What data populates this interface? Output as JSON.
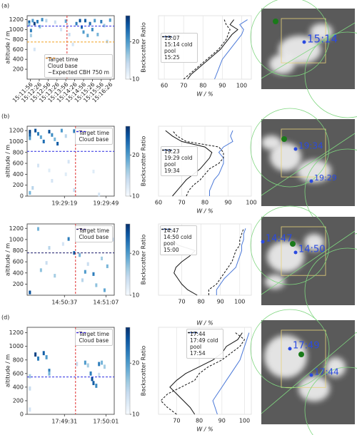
{
  "panel_labels": [
    "(a)",
    "(b)",
    "(d)"
  ],
  "satellite_labels": [
    [
      "15:14"
    ],
    [
      "19:34",
      "19:29"
    ],
    [
      "14:47",
      "14:50"
    ],
    [
      "17:49",
      "17:44"
    ]
  ],
  "chart_data": [
    {
      "type": "heatmap",
      "ylabel": "altitude / m",
      "colorbar_label": "Backscatter Ratio",
      "cmap": "Blues",
      "clim": [
        10,
        27
      ],
      "cticks": [
        10,
        20
      ],
      "xtick_rotation": 45,
      "xlim": [
        54705,
        55000
      ],
      "ylim": [
        0,
        1280
      ],
      "yticks": [
        200,
        400,
        600,
        800,
        1000,
        1200
      ],
      "xticks": [
        {
          "value": 54716,
          "label": "15:11:56"
        },
        {
          "value": 54746,
          "label": "15:12:26"
        },
        {
          "value": 54776,
          "label": "15:12:56"
        },
        {
          "value": 54806,
          "label": "15:13:26"
        },
        {
          "value": 54836,
          "label": "15:13:56"
        },
        {
          "value": 54866,
          "label": "15:14:26"
        },
        {
          "value": 54896,
          "label": "15:14:56"
        },
        {
          "value": 54926,
          "label": "15:15:26"
        },
        {
          "value": 54956,
          "label": "15:15:56"
        },
        {
          "value": 54986,
          "label": "15:16:26"
        }
      ],
      "cells": [
        [
          54712,
          1150,
          24
        ],
        [
          54712,
          1100,
          18
        ],
        [
          54718,
          980,
          22
        ],
        [
          54718,
          880,
          16
        ],
        [
          54724,
          1180,
          20
        ],
        [
          54730,
          1120,
          26
        ],
        [
          54740,
          1160,
          22
        ],
        [
          54748,
          1060,
          18
        ],
        [
          54756,
          1200,
          21
        ],
        [
          54770,
          1180,
          15
        ],
        [
          54800,
          1150,
          14
        ],
        [
          54820,
          1000,
          13
        ],
        [
          54836,
          1170,
          19
        ],
        [
          54848,
          900,
          14
        ],
        [
          54860,
          700,
          13
        ],
        [
          54872,
          1120,
          22
        ],
        [
          54884,
          1180,
          25
        ],
        [
          54890,
          1050,
          23
        ],
        [
          54896,
          950,
          20
        ],
        [
          54902,
          1180,
          24
        ],
        [
          54910,
          880,
          19
        ],
        [
          54918,
          1120,
          23
        ],
        [
          54926,
          1000,
          21
        ],
        [
          54934,
          1180,
          20
        ],
        [
          54944,
          900,
          18
        ],
        [
          54956,
          1160,
          22
        ],
        [
          54966,
          1080,
          17
        ],
        [
          54976,
          760,
          15
        ],
        [
          54986,
          1190,
          20
        ],
        [
          54730,
          600,
          13
        ],
        [
          54790,
          400,
          12
        ]
      ],
      "lines": [
        {
          "name": "Target time",
          "color": "#e03030",
          "x": 54840
        },
        {
          "name": "Cloud base",
          "color": "#2a2ae0",
          "y": 1070
        },
        {
          "name": "~Expected CBH 750 m",
          "color": "#f0a020",
          "y": 750
        }
      ],
      "legend_loc": "lower right"
    },
    {
      "type": "line",
      "xlabel": "W / %",
      "xlim": [
        57,
        105
      ],
      "xticks": [
        60,
        70,
        80,
        90,
        100
      ],
      "ylim": [
        0,
        1280
      ],
      "grid": true,
      "legend_loc": "center left",
      "y": [
        0,
        100,
        200,
        300,
        400,
        500,
        600,
        700,
        800,
        900,
        1000,
        1100,
        1200
      ],
      "series": [
        {
          "name": "15:07",
          "color": "#111111",
          "linestyle": "solid",
          "values": [
            72,
            74,
            77,
            80,
            83,
            86,
            89,
            91,
            93,
            95,
            98,
            94,
            96
          ]
        },
        {
          "name": "15:14 cold pool",
          "color": "#4a78d8",
          "linestyle": "solid",
          "values": [
            86,
            87,
            88,
            89,
            90,
            92,
            94,
            96,
            98,
            100,
            101,
            99,
            103
          ]
        },
        {
          "name": "15:25",
          "color": "#111111",
          "linestyle": "dashed",
          "values": [
            70,
            73,
            76,
            79,
            82,
            85,
            88,
            90,
            92,
            93,
            94,
            92,
            91
          ]
        }
      ]
    },
    {
      "type": "heatmap",
      "ylabel": "altitude / m",
      "colorbar_label": "Backscatter Ratio",
      "cmap": "Blues",
      "clim": [
        10,
        27
      ],
      "cticks": [
        10,
        20
      ],
      "xtick_rotation": 0,
      "xlim": [
        70132,
        70195
      ],
      "ylim": [
        0,
        1280
      ],
      "yticks": [
        0,
        200,
        400,
        600,
        800,
        1000,
        1200
      ],
      "xticks": [
        {
          "value": 70159,
          "label": "19:29:19"
        },
        {
          "value": 70189,
          "label": "19:29:49"
        }
      ],
      "cells": [
        [
          70134,
          1180,
          26
        ],
        [
          70134,
          1120,
          24
        ],
        [
          70134,
          1060,
          20
        ],
        [
          70138,
          1200,
          25
        ],
        [
          70140,
          1140,
          22
        ],
        [
          70142,
          1080,
          19
        ],
        [
          70144,
          1000,
          23
        ],
        [
          70148,
          1180,
          25
        ],
        [
          70150,
          1120,
          21
        ],
        [
          70152,
          1040,
          18
        ],
        [
          70154,
          960,
          24
        ],
        [
          70157,
          1200,
          20
        ],
        [
          70160,
          1100,
          15
        ],
        [
          70166,
          1190,
          22
        ],
        [
          70170,
          1160,
          14
        ],
        [
          70140,
          560,
          13
        ],
        [
          70136,
          150,
          15
        ],
        [
          70134,
          60,
          18
        ],
        [
          70148,
          470,
          12
        ],
        [
          70150,
          280,
          13
        ],
        [
          70160,
          400,
          12
        ],
        [
          70166,
          110,
          14
        ],
        [
          70162,
          630,
          13
        ],
        [
          70180,
          450,
          12
        ],
        [
          70184,
          30,
          13
        ]
      ],
      "lines": [
        {
          "name": "Target time",
          "color": "#e03030",
          "x": 70167
        },
        {
          "name": "Cloud base",
          "color": "#2a2ae0",
          "y": 820
        }
      ],
      "legend_loc": "upper right"
    },
    {
      "type": "line",
      "xlabel": "W / %",
      "xlim": [
        60,
        100
      ],
      "xticks": [
        60,
        70,
        80,
        90,
        100
      ],
      "ylim": [
        0,
        1280
      ],
      "grid": true,
      "legend_loc": "center left",
      "y": [
        0,
        100,
        200,
        300,
        400,
        500,
        600,
        700,
        800,
        900,
        1000,
        1100,
        1200
      ],
      "series": [
        {
          "name": "19:23",
          "color": "#111111",
          "linestyle": "solid",
          "values": [
            66,
            68,
            70,
            72,
            75,
            78,
            80,
            82,
            83,
            80,
            70,
            66,
            63
          ]
        },
        {
          "name": "19:29 cold pool",
          "color": "#4a78d8",
          "linestyle": "solid",
          "values": [
            82,
            82,
            83,
            84,
            86,
            87,
            88,
            88,
            86,
            88,
            92,
            91,
            92
          ]
        },
        {
          "name": "19:34",
          "color": "#111111",
          "linestyle": "dashed",
          "values": [
            72,
            73,
            75,
            78,
            80,
            82,
            86,
            88,
            88,
            86,
            72,
            68,
            66
          ]
        }
      ]
    },
    {
      "type": "heatmap",
      "ylabel": "altitude / m",
      "colorbar_label": "Backscatter Ratio",
      "cmap": "Blues",
      "clim": [
        10,
        27
      ],
      "cticks": [
        10,
        20
      ],
      "xtick_rotation": 0,
      "xlim": [
        53410,
        53473
      ],
      "ylim": [
        0,
        1280
      ],
      "yticks": [
        200,
        400,
        600,
        800,
        1000,
        1200
      ],
      "xticks": [
        {
          "value": 53437,
          "label": "14:50:37"
        },
        {
          "value": 53467,
          "label": "14:51:07"
        }
      ],
      "cells": [
        [
          53412,
          50,
          25
        ],
        [
          53418,
          1190,
          18
        ],
        [
          53420,
          450,
          17
        ],
        [
          53424,
          580,
          14
        ],
        [
          53430,
          350,
          16
        ],
        [
          53436,
          920,
          13
        ],
        [
          53440,
          1010,
          22
        ],
        [
          53444,
          760,
          23
        ],
        [
          53448,
          720,
          18
        ],
        [
          53450,
          270,
          15
        ],
        [
          53454,
          560,
          14
        ],
        [
          53458,
          380,
          22
        ],
        [
          53460,
          180,
          17
        ],
        [
          53464,
          660,
          16
        ],
        [
          53466,
          90,
          19
        ],
        [
          53468,
          520,
          18
        ],
        [
          53472,
          1000,
          13
        ],
        [
          53426,
          850,
          15
        ],
        [
          53452,
          420,
          20
        ]
      ],
      "lines": [
        {
          "name": "Target time",
          "color": "#e03030",
          "x": 53445
        },
        {
          "name": "Cloud base",
          "color": "#1a1a6a",
          "y": 760
        }
      ],
      "legend_loc": "upper right"
    },
    {
      "type": "line",
      "xlabel": "W / %",
      "xlim": [
        58,
        106
      ],
      "xticks": [
        70,
        80,
        90,
        100
      ],
      "ylim": [
        0,
        1280
      ],
      "grid": true,
      "legend_loc": "upper left",
      "y": [
        0,
        100,
        200,
        300,
        400,
        500,
        600,
        700,
        800,
        900,
        1000,
        1100,
        1200
      ],
      "series": [
        {
          "name": "14:47",
          "color": "#111111",
          "linestyle": "solid",
          "values": [
            78,
            73,
            70,
            68,
            66,
            67,
            70,
            74,
            77,
            68,
            65,
            68,
            66
          ]
        },
        {
          "name": "14:50 cold pool",
          "color": "#4a78d8",
          "linestyle": "solid",
          "values": [
            88,
            88,
            90,
            92,
            95,
            98,
            99,
            100,
            101,
            101,
            102,
            102,
            103
          ]
        },
        {
          "name": "15:00",
          "color": "#111111",
          "linestyle": "dashed",
          "values": [
            84,
            84,
            88,
            90,
            92,
            94,
            96,
            97,
            98,
            100,
            100,
            101,
            102
          ]
        }
      ]
    },
    {
      "type": "heatmap",
      "ylabel": "altitude / m",
      "colorbar_label": "Backscatter Ratio",
      "cmap": "Blues",
      "clim": [
        10,
        27
      ],
      "cticks": [
        10,
        20
      ],
      "xtick_rotation": 0,
      "xlim": [
        64144,
        64207
      ],
      "ylim": [
        0,
        1280
      ],
      "yticks": [
        0,
        200,
        400,
        600,
        800,
        1000,
        1200
      ],
      "xticks": [
        {
          "value": 64171,
          "label": "17:49:31"
        },
        {
          "value": 64201,
          "label": "17:50:01"
        }
      ],
      "cells": [
        [
          64146,
          560,
          16
        ],
        [
          64146,
          380,
          14
        ],
        [
          64146,
          70,
          13
        ],
        [
          64150,
          880,
          26
        ],
        [
          64152,
          820,
          22
        ],
        [
          64156,
          900,
          24
        ],
        [
          64158,
          840,
          20
        ],
        [
          64160,
          640,
          22
        ],
        [
          64160,
          600,
          18
        ],
        [
          64180,
          740,
          14
        ],
        [
          64186,
          760,
          20
        ],
        [
          64188,
          720,
          16
        ],
        [
          64190,
          600,
          22
        ],
        [
          64191,
          520,
          25
        ],
        [
          64192,
          460,
          24
        ],
        [
          64194,
          420,
          21
        ],
        [
          64196,
          740,
          22
        ],
        [
          64198,
          760,
          18
        ],
        [
          64200,
          700,
          16
        ],
        [
          64196,
          580,
          14
        ]
      ],
      "lines": [
        {
          "name": "Target time",
          "color": "#e03030",
          "x": 64179
        },
        {
          "name": "Cloud base",
          "color": "#2a2ae0",
          "y": 550
        }
      ],
      "legend_loc": "upper right"
    },
    {
      "type": "line",
      "xlabel": "W / %",
      "xlim": [
        62,
        103
      ],
      "xticks": [
        70,
        80,
        90,
        100
      ],
      "ylim": [
        0,
        1280
      ],
      "grid": true,
      "legend_loc": "upper center",
      "y": [
        0,
        100,
        200,
        300,
        400,
        500,
        600,
        700,
        800,
        900,
        1000,
        1100,
        1200
      ],
      "series": [
        {
          "name": "17:44",
          "color": "#111111",
          "linestyle": "solid",
          "values": [
            78,
            76,
            73,
            70,
            67,
            70,
            74,
            80,
            86,
            90,
            92,
            97,
            99
          ]
        },
        {
          "name": "17:49 cold pool",
          "color": "#4a78d8",
          "linestyle": "solid",
          "values": [
            88,
            87,
            86,
            88,
            90,
            92,
            94,
            96,
            98,
            99,
            100,
            101,
            102
          ]
        },
        {
          "name": "17:54",
          "color": "#111111",
          "linestyle": "dashed",
          "values": [
            70,
            66,
            63,
            66,
            72,
            78,
            80,
            84,
            90,
            94,
            98,
            100,
            96
          ]
        }
      ]
    }
  ]
}
